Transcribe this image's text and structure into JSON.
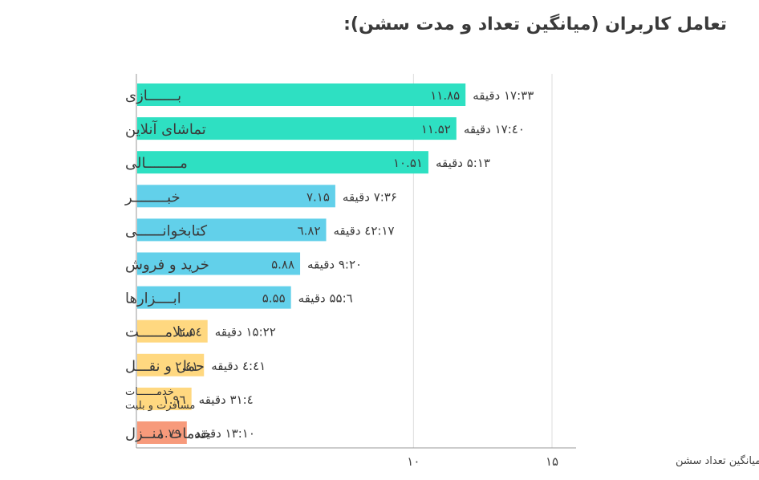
{
  "chart_data": {
    "type": "bar",
    "orientation": "horizontal",
    "title": "تعامل کاربران (میانگین تعداد و مدت سشن):",
    "xlabel": "میانگین تعداد سشن",
    "ylabel": "",
    "xlim": [
      0,
      17
    ],
    "ticks": [
      {
        "value": 10,
        "label": "۱۰"
      },
      {
        "value": 15,
        "label": "۱۵"
      }
    ],
    "grid": true,
    "colors": {
      "high": "#2ee0c2",
      "mid": "#62d0ea",
      "low": "#ffd880",
      "lowest": "#f79a7b",
      "axis": "#999999",
      "grid": "#dddddd",
      "text": "#444444"
    },
    "categories": [
      {
        "label": "بـــــــازی",
        "value": 11.85,
        "value_label": "۱۱.۸۵",
        "duration": "۱۷:۳۳ دقیقه",
        "group": "high"
      },
      {
        "label": "تماشای آنلاین",
        "value": 11.52,
        "value_label": "۱۱.۵۲",
        "duration": "٤٠:۱۷ دقیقه",
        "group": "high"
      },
      {
        "label": "مــــــــالی",
        "value": 10.51,
        "value_label": "۱۰.۵۱",
        "duration": "۵:۱۳ دقیقه",
        "group": "high"
      },
      {
        "label": "خبــــــــر",
        "value": 7.15,
        "value_label": "۷.۱۵",
        "duration": "۷:۳۶ دقیقه",
        "group": "mid"
      },
      {
        "label": "کتابخوانــــــی",
        "value": 6.82,
        "value_label": "٦.۸۲",
        "duration": "۱۷:٤۲ دقیقه",
        "group": "mid"
      },
      {
        "label": "خرید و فروش",
        "value": 5.88,
        "value_label": "۵.۸۸",
        "duration": "۹:۲۰ دقیقه",
        "group": "mid"
      },
      {
        "label": "ابــــزارها",
        "value": 5.55,
        "value_label": "۵.۵۵",
        "duration": "٦:۵۵ دقیقه",
        "group": "mid"
      },
      {
        "label": "سلامــــــت",
        "value": 2.54,
        "value_label": "۲.۵٤",
        "duration": "۱۵:۲۲ دقیقه",
        "group": "low"
      },
      {
        "label": "حمل و نقـــل",
        "value": 2.41,
        "value_label": "۲.٤۱",
        "duration": "٤:٤۱ دقیقه",
        "group": "low"
      },
      {
        "label": "خدمــــــات\nمسافرت و بلیت",
        "value": 1.96,
        "value_label": "۱.۹٦",
        "duration": "٤:۳۱ دقیقه",
        "group": "low"
      },
      {
        "label": "خدمات منــزل",
        "value": 1.79,
        "value_label": "۱.۷۹",
        "duration": "۱۳:۱۰ دقیقه",
        "group": "lowest"
      }
    ]
  }
}
